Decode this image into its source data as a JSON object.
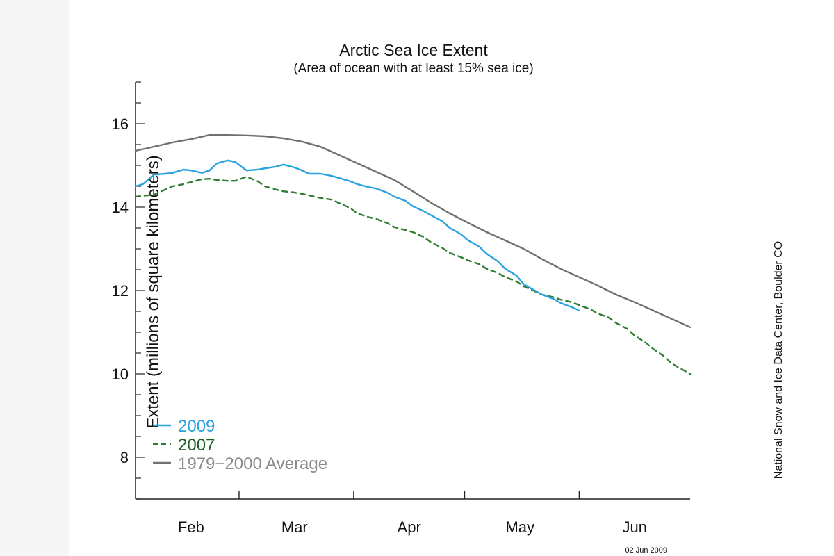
{
  "chart_data": {
    "type": "line",
    "title": "Arctic Sea Ice Extent",
    "subtitle": "(Area of ocean with at least 15% sea ice)",
    "ylabel": "Extent (millions of square kilometers)",
    "xlabel": "",
    "ylim": [
      7,
      17
    ],
    "y_ticks": [
      8,
      10,
      12,
      14,
      16
    ],
    "x_day_range": [
      0,
      150
    ],
    "month_labels": [
      {
        "label": "Feb",
        "center_day": 15
      },
      {
        "label": "Mar",
        "center_day": 43
      },
      {
        "label": "Apr",
        "center_day": 74
      },
      {
        "label": "May",
        "center_day": 104
      },
      {
        "label": "Jun",
        "center_day": 135
      }
    ],
    "month_boundaries_day": [
      28,
      59,
      89,
      120
    ],
    "grid": false,
    "legend_position": "bottom-left",
    "credit": "National Snow and Ice Data Center, Boulder CO",
    "date_stamp": "02 Jun 2009",
    "series": [
      {
        "name": "2009",
        "color": "#29a3df",
        "dash": "solid",
        "x": [
          0,
          2,
          5,
          8,
          10,
          13,
          15,
          18,
          20,
          22,
          25,
          27,
          30,
          33,
          35,
          38,
          40,
          43,
          45,
          47,
          50,
          53,
          55,
          58,
          60,
          63,
          65,
          68,
          70,
          73,
          75,
          78,
          80,
          83,
          85,
          88,
          90,
          93,
          95,
          98,
          100,
          103,
          105,
          108,
          110,
          113,
          115,
          118,
          120
        ],
        "y": [
          14.5,
          14.55,
          14.78,
          14.8,
          14.82,
          14.9,
          14.88,
          14.82,
          14.88,
          15.05,
          15.12,
          15.08,
          14.88,
          14.9,
          14.93,
          14.97,
          15.02,
          14.95,
          14.88,
          14.8,
          14.8,
          14.75,
          14.7,
          14.62,
          14.55,
          14.48,
          14.45,
          14.35,
          14.25,
          14.15,
          14.02,
          13.9,
          13.8,
          13.66,
          13.5,
          13.35,
          13.2,
          13.05,
          12.88,
          12.7,
          12.52,
          12.36,
          12.15,
          12.0,
          11.9,
          11.8,
          11.7,
          11.6,
          11.52
        ]
      },
      {
        "name": "2007",
        "color": "#2e7d32",
        "dash": "dashed",
        "x": [
          0,
          2,
          5,
          8,
          10,
          13,
          15,
          18,
          20,
          22,
          25,
          27,
          30,
          33,
          35,
          38,
          40,
          43,
          45,
          47,
          50,
          53,
          55,
          58,
          60,
          63,
          65,
          68,
          70,
          73,
          75,
          78,
          80,
          83,
          85,
          88,
          90,
          93,
          95,
          98,
          100,
          103,
          105,
          108,
          110,
          113,
          115,
          118,
          120,
          123,
          125,
          128,
          130,
          133,
          135,
          138,
          140,
          143,
          145,
          148,
          150
        ],
        "y": [
          14.25,
          14.27,
          14.3,
          14.42,
          14.5,
          14.55,
          14.6,
          14.67,
          14.68,
          14.65,
          14.63,
          14.63,
          14.73,
          14.62,
          14.5,
          14.42,
          14.38,
          14.35,
          14.32,
          14.28,
          14.22,
          14.18,
          14.1,
          13.98,
          13.85,
          13.76,
          13.72,
          13.62,
          13.52,
          13.45,
          13.4,
          13.28,
          13.15,
          13.02,
          12.9,
          12.8,
          12.72,
          12.63,
          12.52,
          12.42,
          12.32,
          12.22,
          12.1,
          11.98,
          11.9,
          11.84,
          11.78,
          11.72,
          11.65,
          11.55,
          11.45,
          11.35,
          11.22,
          11.08,
          10.92,
          10.75,
          10.6,
          10.42,
          10.25,
          10.1,
          10.0
        ]
      },
      {
        "name": "1979−2000 Average",
        "color": "#707070",
        "dash": "solid",
        "x": [
          0,
          5,
          10,
          15,
          20,
          25,
          30,
          35,
          40,
          45,
          50,
          55,
          60,
          65,
          70,
          75,
          80,
          85,
          90,
          95,
          100,
          105,
          110,
          115,
          120,
          125,
          130,
          135,
          140,
          145,
          150
        ],
        "y": [
          15.35,
          15.45,
          15.55,
          15.63,
          15.73,
          15.73,
          15.72,
          15.7,
          15.65,
          15.57,
          15.45,
          15.25,
          15.05,
          14.85,
          14.65,
          14.38,
          14.1,
          13.85,
          13.62,
          13.4,
          13.2,
          13.0,
          12.75,
          12.52,
          12.32,
          12.12,
          11.9,
          11.72,
          11.52,
          11.32,
          11.12
        ]
      }
    ]
  }
}
